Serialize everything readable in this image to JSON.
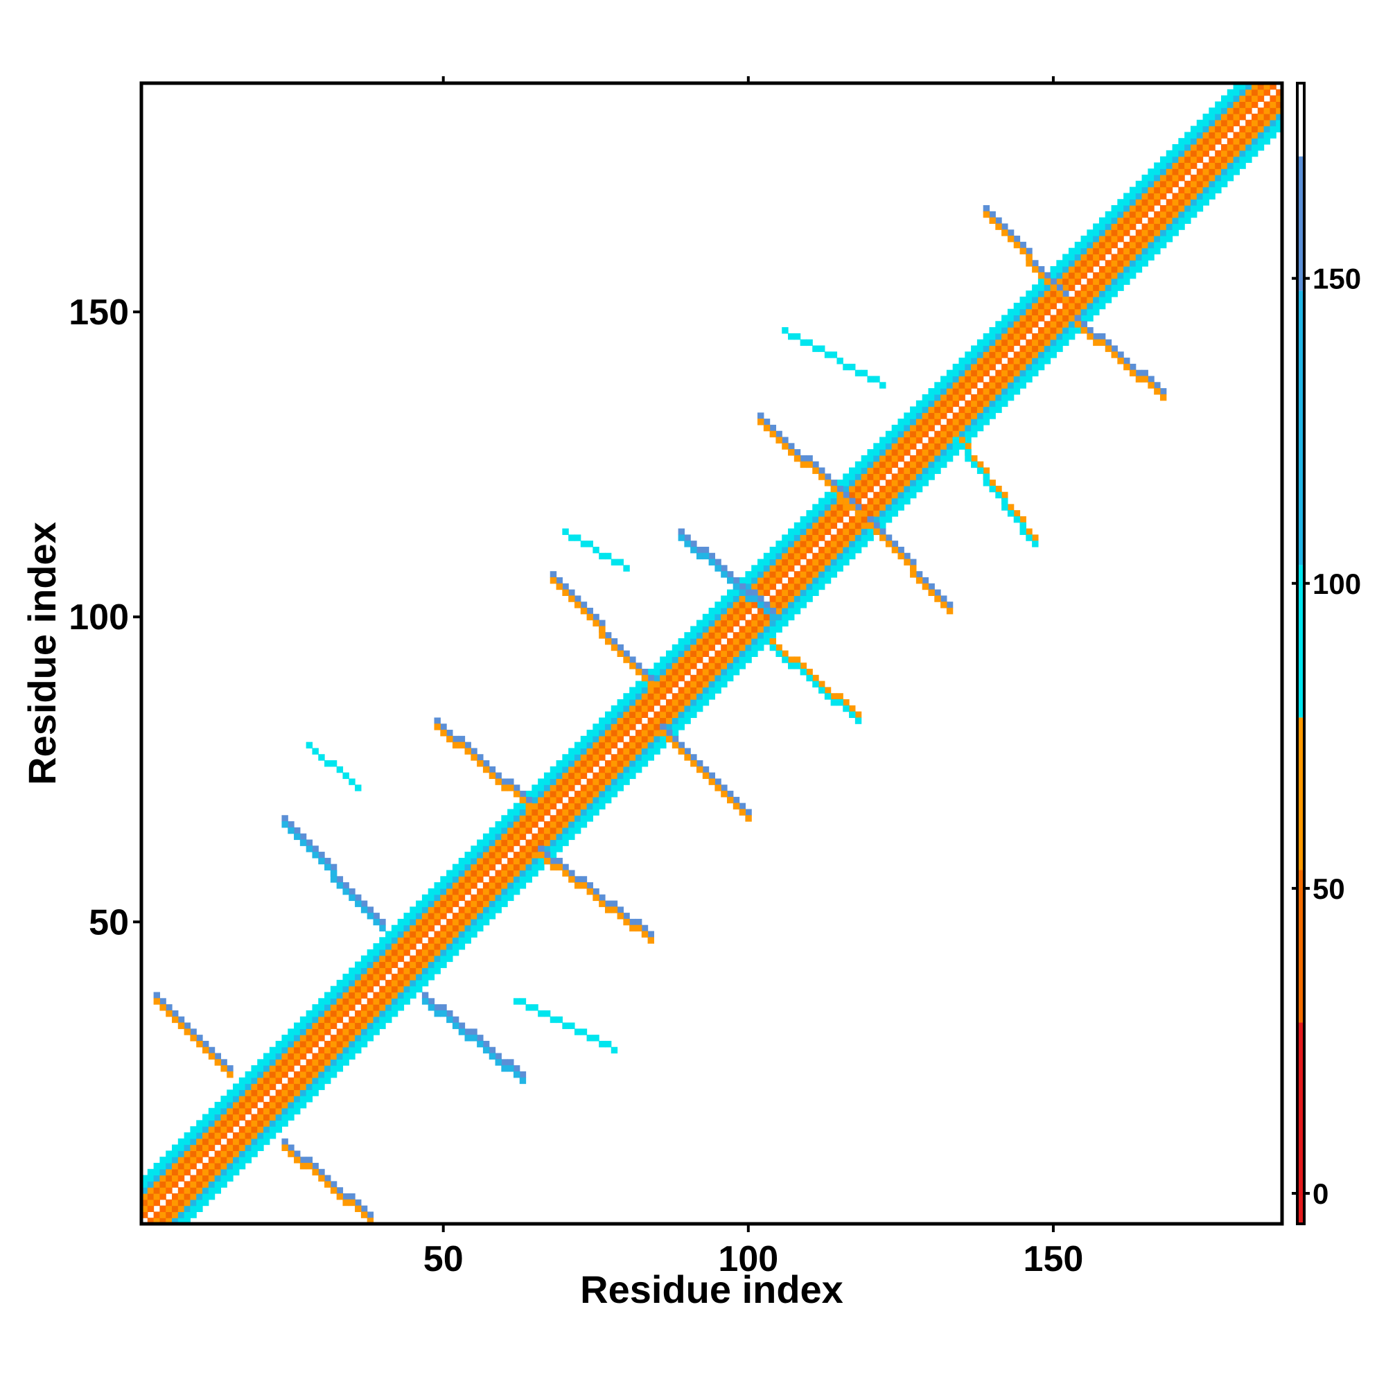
{
  "chart_data": {
    "type": "heatmap",
    "title": "",
    "xlabel": "Residue index",
    "ylabel": "Residue index",
    "xlim": [
      1,
      187
    ],
    "ylim": [
      1,
      187
    ],
    "xticks": [
      50,
      100,
      150
    ],
    "yticks": [
      50,
      100,
      150
    ],
    "colorbar": {
      "ticks": [
        0,
        50,
        100,
        150
      ],
      "range": [
        -5,
        182
      ],
      "bands": [
        {
          "from": -5,
          "to": 28,
          "color": "#e31a1c"
        },
        {
          "from": 28,
          "to": 53,
          "color": "#f36b00"
        },
        {
          "from": 53,
          "to": 78,
          "color": "#ff9900"
        },
        {
          "from": 78,
          "to": 103,
          "color": "#00e5ee"
        },
        {
          "from": 103,
          "to": 148,
          "color": "#22b5e5"
        },
        {
          "from": 148,
          "to": 170,
          "color": "#5b8fd6"
        },
        {
          "from": 170,
          "to": 182,
          "color": "#ffffff"
        }
      ]
    },
    "diagonal": {
      "from": 1,
      "to": 187,
      "offset_colors": [
        {
          "offset": 1,
          "color": "#ff6a00"
        },
        {
          "offset": 2,
          "color": "#ff9900"
        },
        {
          "offset": 3,
          "color": "#f36b00"
        },
        {
          "offset": 4,
          "color": "#ff9900"
        },
        {
          "offset": 5,
          "color": "#22b5e5"
        },
        {
          "offset": 6,
          "color": "#00e5ee"
        },
        {
          "offset": 7,
          "color": "#00e5ee"
        }
      ]
    },
    "contact_bands": [
      {
        "i": [
          3,
          15
        ],
        "j": [
          38,
          26
        ],
        "color": "#5b8fd6"
      },
      {
        "i": [
          3,
          15
        ],
        "j": [
          37,
          25
        ],
        "color": "#ff9900"
      },
      {
        "i": [
          24,
          38
        ],
        "j": [
          14,
          2
        ],
        "color": "#5b8fd6"
      },
      {
        "i": [
          24,
          38
        ],
        "j": [
          13,
          1
        ],
        "color": "#ff9900"
      },
      {
        "i": [
          24,
          40
        ],
        "j": [
          67,
          50
        ],
        "color": "#5b8fd6"
      },
      {
        "i": [
          24,
          40
        ],
        "j": [
          66,
          49
        ],
        "color": "#22b5e5"
      },
      {
        "i": [
          28,
          36
        ],
        "j": [
          79,
          72
        ],
        "color": "#00e5ee"
      },
      {
        "i": [
          47,
          63
        ],
        "j": [
          38,
          25
        ],
        "color": "#5b8fd6"
      },
      {
        "i": [
          47,
          63
        ],
        "j": [
          37,
          24
        ],
        "color": "#22b5e5"
      },
      {
        "i": [
          62,
          78
        ],
        "j": [
          37,
          29
        ],
        "color": "#00e5ee"
      },
      {
        "i": [
          49,
          64
        ],
        "j": [
          83,
          70
        ],
        "color": "#5b8fd6"
      },
      {
        "i": [
          49,
          64
        ],
        "j": [
          82,
          69
        ],
        "color": "#ff9900"
      },
      {
        "i": [
          66,
          84
        ],
        "j": [
          62,
          48
        ],
        "color": "#5b8fd6"
      },
      {
        "i": [
          66,
          84
        ],
        "j": [
          61,
          47
        ],
        "color": "#ff9900"
      },
      {
        "i": [
          68,
          84
        ],
        "j": [
          107,
          90
        ],
        "color": "#5b8fd6"
      },
      {
        "i": [
          68,
          84
        ],
        "j": [
          106,
          89
        ],
        "color": "#ff9900"
      },
      {
        "i": [
          70,
          80
        ],
        "j": [
          114,
          108
        ],
        "color": "#00e5ee"
      },
      {
        "i": [
          86,
          100
        ],
        "j": [
          82,
          68
        ],
        "color": "#5b8fd6"
      },
      {
        "i": [
          86,
          100
        ],
        "j": [
          81,
          67
        ],
        "color": "#ff9900"
      },
      {
        "i": [
          104,
          118
        ],
        "j": [
          96,
          84
        ],
        "color": "#ff9900"
      },
      {
        "i": [
          104,
          118
        ],
        "j": [
          95,
          83
        ],
        "color": "#00e5ee"
      },
      {
        "i": [
          89,
          104
        ],
        "j": [
          114,
          101
        ],
        "color": "#5b8fd6"
      },
      {
        "i": [
          89,
          104
        ],
        "j": [
          113,
          100
        ],
        "color": "#22b5e5"
      },
      {
        "i": [
          102,
          118
        ],
        "j": [
          133,
          118
        ],
        "color": "#5b8fd6"
      },
      {
        "i": [
          102,
          118
        ],
        "j": [
          132,
          117
        ],
        "color": "#ff9900"
      },
      {
        "i": [
          106,
          122
        ],
        "j": [
          147,
          138
        ],
        "color": "#00e5ee"
      },
      {
        "i": [
          120,
          133
        ],
        "j": [
          116,
          102
        ],
        "color": "#5b8fd6"
      },
      {
        "i": [
          120,
          133
        ],
        "j": [
          115,
          101
        ],
        "color": "#ff9900"
      },
      {
        "i": [
          134,
          147
        ],
        "j": [
          130,
          113
        ],
        "color": "#ff9900"
      },
      {
        "i": [
          134,
          147
        ],
        "j": [
          129,
          112
        ],
        "color": "#00e5ee"
      },
      {
        "i": [
          139,
          152
        ],
        "j": [
          167,
          153
        ],
        "color": "#5b8fd6"
      },
      {
        "i": [
          139,
          152
        ],
        "j": [
          166,
          152
        ],
        "color": "#ff9900"
      },
      {
        "i": [
          154,
          168
        ],
        "j": [
          149,
          137
        ],
        "color": "#5b8fd6"
      },
      {
        "i": [
          154,
          168
        ],
        "j": [
          148,
          136
        ],
        "color": "#ff9900"
      }
    ]
  }
}
